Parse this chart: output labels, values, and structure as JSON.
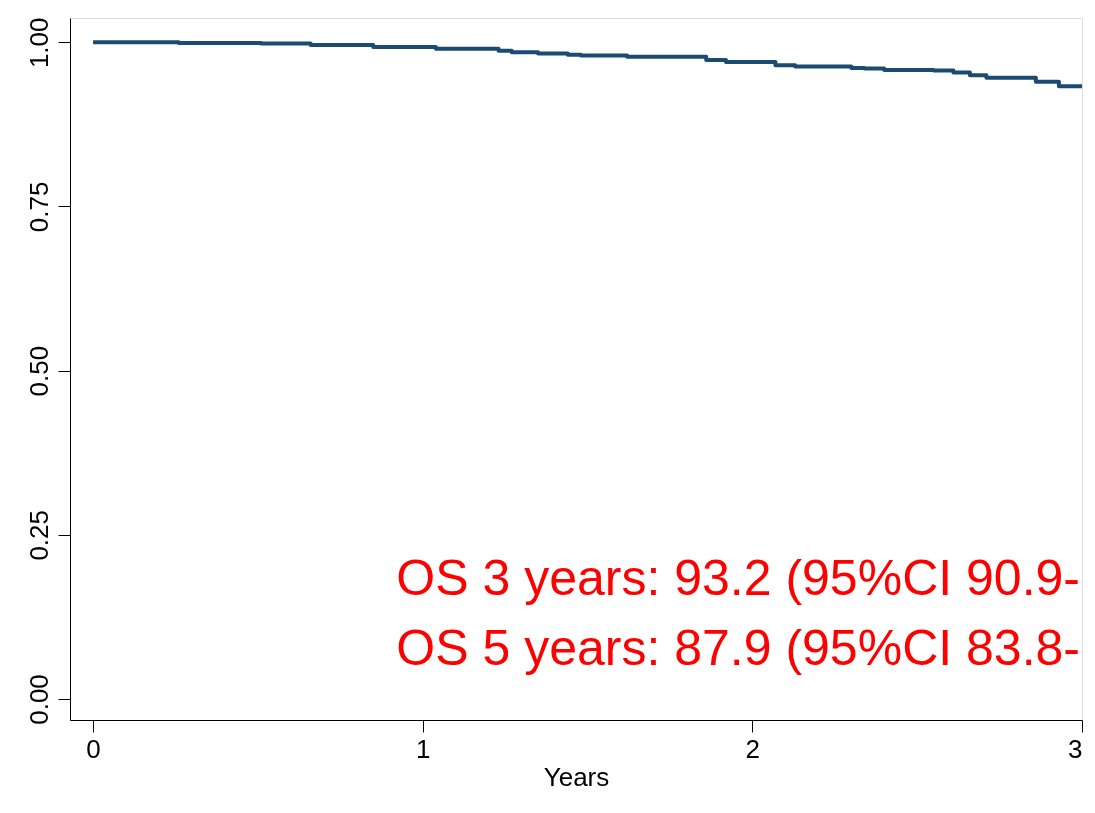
{
  "chart_data": {
    "type": "step",
    "xlabel": "Years",
    "x": [
      0,
      0.26,
      0.51,
      0.66,
      0.85,
      1.04,
      1.23,
      1.27,
      1.35,
      1.44,
      1.48,
      1.62,
      1.86,
      1.92,
      2.07,
      2.13,
      2.3,
      2.34,
      2.4,
      2.55,
      2.61,
      2.66,
      2.71,
      2.86,
      2.93,
      3.0
    ],
    "series": [
      {
        "color": "#1b4a72",
        "values": [
          1.0,
          0.999,
          0.998,
          0.996,
          0.993,
          0.99,
          0.987,
          0.985,
          0.983,
          0.981,
          0.98,
          0.978,
          0.973,
          0.97,
          0.965,
          0.963,
          0.961,
          0.96,
          0.958,
          0.957,
          0.954,
          0.95,
          0.946,
          0.94,
          0.933,
          0.933
        ]
      }
    ],
    "xlim": [
      -0.07,
      3.0
    ],
    "xticks": [
      0,
      1,
      2,
      3
    ],
    "ylim": [
      -0.032,
      1.037
    ],
    "yticks": [
      {
        "value": 0,
        "label": "0.00"
      },
      {
        "value": 0.25,
        "label": "0.25"
      },
      {
        "value": 0.5,
        "label": "0.50"
      },
      {
        "value": 0.75,
        "label": "0.75"
      },
      {
        "value": 1,
        "label": "1.00"
      }
    ],
    "annotations": [
      "OS 3 years: 93.2 (95%CI 90.9-",
      "OS 5 years: 87.9 (95%CI 83.8-"
    ],
    "grid": false
  }
}
